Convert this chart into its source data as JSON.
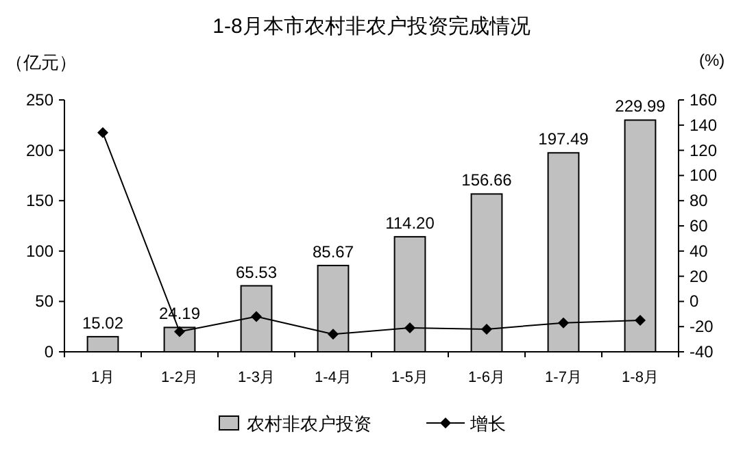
{
  "chart_data": {
    "type": "bar",
    "title": "1-8月本市农村非农户投资完成情况",
    "ylabel": "（亿元）",
    "y2label": "(%)",
    "categories": [
      "1月",
      "1-2月",
      "1-3月",
      "1-4月",
      "1-5月",
      "1-6月",
      "1-7月",
      "1-8月"
    ],
    "series": [
      {
        "name": "农村非农户投资",
        "color": "#c0c0c0",
        "values": [
          15.02,
          24.19,
          65.53,
          85.67,
          114.2,
          156.66,
          197.49,
          229.99
        ],
        "value_labels": [
          "15.02",
          "24.19",
          "65.53",
          "85.67",
          "114.20",
          "156.66",
          "197.49",
          "229.99"
        ]
      },
      {
        "name": "增长",
        "type": "line",
        "axis": "y2",
        "color": "#000000",
        "marker": "diamond",
        "values": [
          134,
          -24,
          -12,
          -26,
          -21,
          -22,
          -17,
          -15
        ]
      }
    ],
    "ylim": [
      0,
      250
    ],
    "yticks": [
      0,
      50,
      100,
      150,
      200,
      250
    ],
    "y2lim": [
      -40,
      160
    ],
    "y2ticks": [
      -40,
      -20,
      0,
      20,
      40,
      60,
      80,
      100,
      120,
      140,
      160
    ],
    "grid": false,
    "legend": "bottom"
  }
}
